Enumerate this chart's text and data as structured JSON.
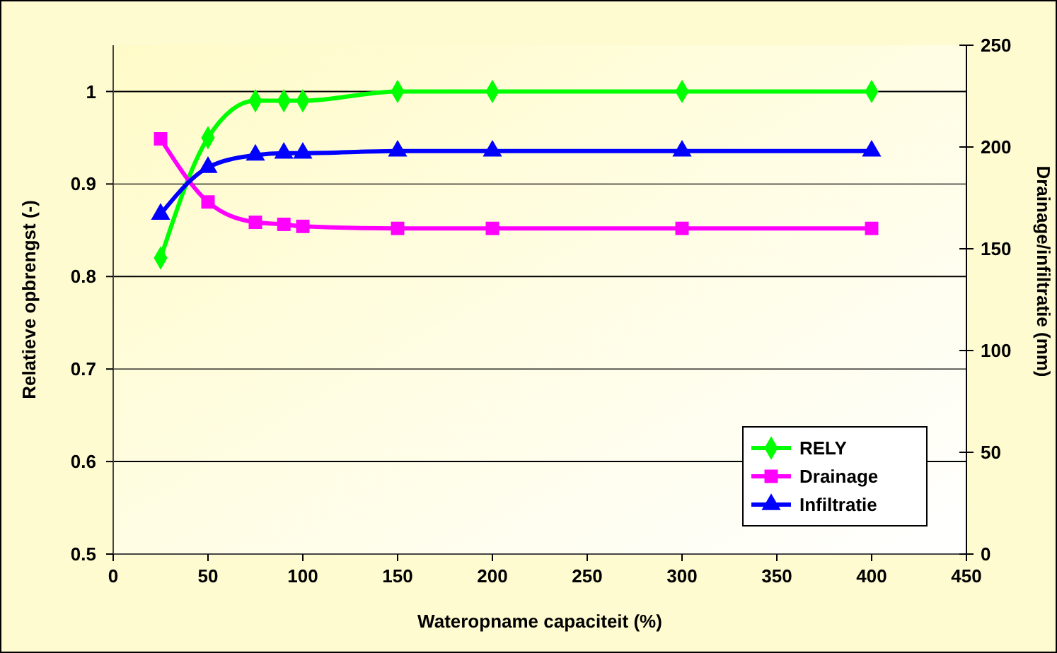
{
  "chart_data": {
    "type": "line",
    "xlabel": "Wateropname capaciteit (%)",
    "ylabel": "Relatieve opbrengst (-)",
    "y2label": "Drainage/infiltratie (mm)",
    "x": [
      25,
      50,
      75,
      90,
      100,
      150,
      200,
      300,
      400
    ],
    "series": [
      {
        "name": "RELY",
        "color": "#00ff00",
        "marker": "diamond",
        "values": [
          0.82,
          0.95,
          0.99,
          0.99,
          0.99,
          1,
          1,
          1,
          1
        ]
      },
      {
        "name": "Drainage",
        "color": "#ff00ff",
        "marker": "square",
        "axis": "y2",
        "values": [
          204,
          173,
          163,
          162,
          161,
          160,
          160,
          160,
          160
        ]
      },
      {
        "name": "Infiltratie",
        "color": "#0000ff",
        "marker": "triangle",
        "axis": "y2",
        "values": [
          167,
          190,
          196,
          197,
          197,
          198,
          198,
          198,
          198
        ]
      }
    ],
    "xlim": [
      0,
      450
    ],
    "xticks": [
      0,
      50,
      100,
      150,
      200,
      250,
      300,
      350,
      400,
      450
    ],
    "ylim": [
      0.5,
      1.05
    ],
    "yticks": [
      0.5,
      0.6,
      0.7,
      0.8,
      0.9,
      1
    ],
    "y2lim": [
      0,
      250
    ],
    "y2ticks": [
      0,
      50,
      100,
      150,
      200,
      250
    ],
    "grid": "y",
    "legend": "bottom right"
  }
}
